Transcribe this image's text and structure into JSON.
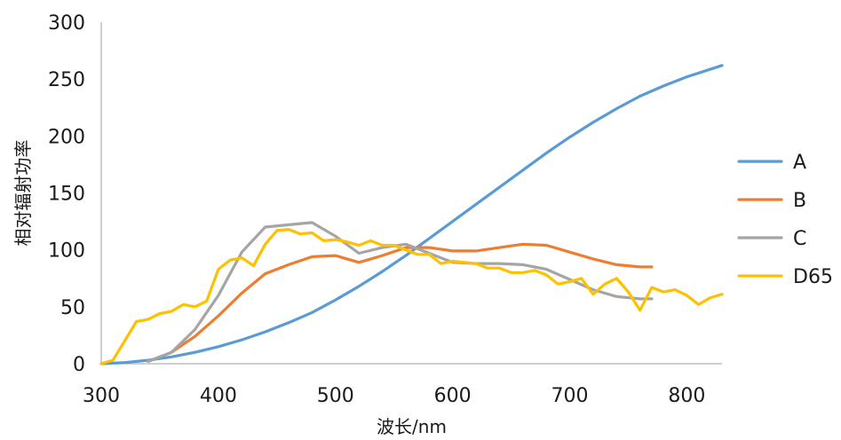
{
  "chart_data": {
    "type": "line",
    "title": "",
    "xlabel": "波长/nm",
    "ylabel": "相对辐射功率",
    "xlim": [
      300,
      830
    ],
    "ylim": [
      0,
      300
    ],
    "x_ticks": [
      300,
      400,
      500,
      600,
      700,
      800
    ],
    "y_ticks": [
      0,
      50,
      100,
      150,
      200,
      250,
      300
    ],
    "grid": false,
    "legend_position": "right",
    "series": [
      {
        "name": "A",
        "color": "#5b9bd5",
        "points": [
          [
            300,
            0
          ],
          [
            320,
            1
          ],
          [
            340,
            3
          ],
          [
            360,
            6
          ],
          [
            380,
            10
          ],
          [
            400,
            15
          ],
          [
            420,
            21
          ],
          [
            440,
            28
          ],
          [
            460,
            36
          ],
          [
            480,
            45
          ],
          [
            500,
            56
          ],
          [
            520,
            68
          ],
          [
            540,
            81
          ],
          [
            560,
            95
          ],
          [
            580,
            110
          ],
          [
            600,
            125
          ],
          [
            620,
            140
          ],
          [
            640,
            155
          ],
          [
            660,
            170
          ],
          [
            680,
            185
          ],
          [
            700,
            199
          ],
          [
            720,
            212
          ],
          [
            740,
            224
          ],
          [
            760,
            235
          ],
          [
            780,
            244
          ],
          [
            800,
            252
          ],
          [
            830,
            262
          ]
        ]
      },
      {
        "name": "B",
        "color": "#ed7d31",
        "points": [
          [
            340,
            2
          ],
          [
            360,
            10
          ],
          [
            380,
            24
          ],
          [
            400,
            42
          ],
          [
            420,
            62
          ],
          [
            440,
            79
          ],
          [
            460,
            87
          ],
          [
            480,
            94
          ],
          [
            500,
            95
          ],
          [
            520,
            89
          ],
          [
            540,
            95
          ],
          [
            560,
            102
          ],
          [
            580,
            102
          ],
          [
            600,
            99
          ],
          [
            620,
            99
          ],
          [
            640,
            102
          ],
          [
            660,
            105
          ],
          [
            680,
            104
          ],
          [
            700,
            98
          ],
          [
            720,
            92
          ],
          [
            740,
            87
          ],
          [
            760,
            85
          ],
          [
            770,
            85
          ]
        ]
      },
      {
        "name": "C",
        "color": "#a5a5a5",
        "points": [
          [
            340,
            2
          ],
          [
            360,
            10
          ],
          [
            380,
            30
          ],
          [
            400,
            60
          ],
          [
            420,
            98
          ],
          [
            440,
            120
          ],
          [
            460,
            122
          ],
          [
            480,
            124
          ],
          [
            500,
            112
          ],
          [
            520,
            97
          ],
          [
            540,
            102
          ],
          [
            560,
            105
          ],
          [
            580,
            97
          ],
          [
            600,
            89
          ],
          [
            620,
            88
          ],
          [
            640,
            88
          ],
          [
            660,
            87
          ],
          [
            680,
            83
          ],
          [
            700,
            74
          ],
          [
            720,
            65
          ],
          [
            740,
            59
          ],
          [
            760,
            57
          ],
          [
            770,
            57
          ]
        ]
      },
      {
        "name": "D65",
        "color": "#ffc000",
        "points": [
          [
            300,
            0
          ],
          [
            310,
            3
          ],
          [
            320,
            20
          ],
          [
            330,
            37
          ],
          [
            340,
            39
          ],
          [
            350,
            44
          ],
          [
            360,
            46
          ],
          [
            370,
            52
          ],
          [
            380,
            50
          ],
          [
            390,
            55
          ],
          [
            400,
            83
          ],
          [
            410,
            91
          ],
          [
            420,
            93
          ],
          [
            430,
            86
          ],
          [
            440,
            105
          ],
          [
            450,
            117
          ],
          [
            460,
            118
          ],
          [
            470,
            114
          ],
          [
            480,
            115
          ],
          [
            490,
            108
          ],
          [
            500,
            109
          ],
          [
            510,
            107
          ],
          [
            520,
            104
          ],
          [
            530,
            108
          ],
          [
            540,
            104
          ],
          [
            550,
            104
          ],
          [
            560,
            100
          ],
          [
            570,
            96
          ],
          [
            580,
            96
          ],
          [
            590,
            88
          ],
          [
            600,
            90
          ],
          [
            610,
            89
          ],
          [
            620,
            88
          ],
          [
            630,
            84
          ],
          [
            640,
            84
          ],
          [
            650,
            80
          ],
          [
            660,
            80
          ],
          [
            670,
            82
          ],
          [
            680,
            78
          ],
          [
            690,
            70
          ],
          [
            700,
            72
          ],
          [
            710,
            75
          ],
          [
            720,
            61
          ],
          [
            730,
            70
          ],
          [
            740,
            75
          ],
          [
            750,
            63
          ],
          [
            760,
            47
          ],
          [
            770,
            67
          ],
          [
            780,
            63
          ],
          [
            790,
            65
          ],
          [
            800,
            60
          ],
          [
            810,
            52
          ],
          [
            820,
            58
          ],
          [
            830,
            61
          ]
        ]
      }
    ]
  }
}
